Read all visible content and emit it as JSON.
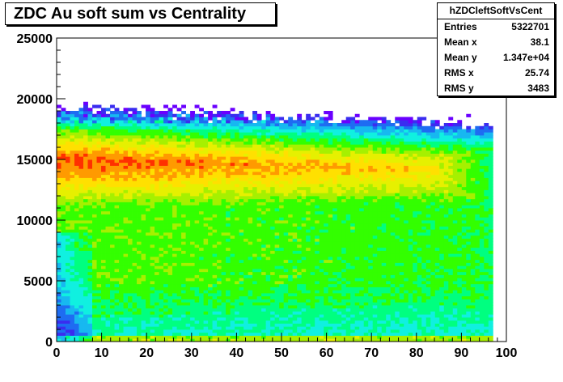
{
  "chart_data": {
    "type": "heatmap",
    "title": "ZDC Au soft sum  vs Centrality",
    "xlabel": "",
    "ylabel": "",
    "xlim": [
      0,
      100
    ],
    "ylim": [
      0,
      25000
    ],
    "x_bins": 98,
    "x_data_max": 97,
    "x_ticks": [
      "0",
      "10",
      "20",
      "30",
      "40",
      "50",
      "60",
      "70",
      "80",
      "90",
      "100"
    ],
    "y_ticks": [
      "0",
      "5000",
      "10000",
      "15000",
      "20000",
      "25000"
    ],
    "palette": [
      "#6a00ff",
      "#3a2cf0",
      "#1e6cf2",
      "#17b8f0",
      "#10f0e0",
      "#00ff80",
      "#33ff00",
      "#a6f000",
      "#e6f000",
      "#ffe000",
      "#ff9a00",
      "#ff3000"
    ],
    "ridge_y_at_x0": 15000,
    "ridge_y_at_x100": 14000,
    "ridge_end_x": 85
  },
  "stats": {
    "name": "hZDCleftSoftVsCent",
    "rows": [
      {
        "label": "Entries",
        "value": "5322701"
      },
      {
        "label": "Mean x",
        "value": "38.1"
      },
      {
        "label": "Mean y",
        "value": "1.347e+04"
      },
      {
        "label": "RMS x",
        "value": "25.74"
      },
      {
        "label": "RMS y",
        "value": "3483"
      }
    ]
  }
}
